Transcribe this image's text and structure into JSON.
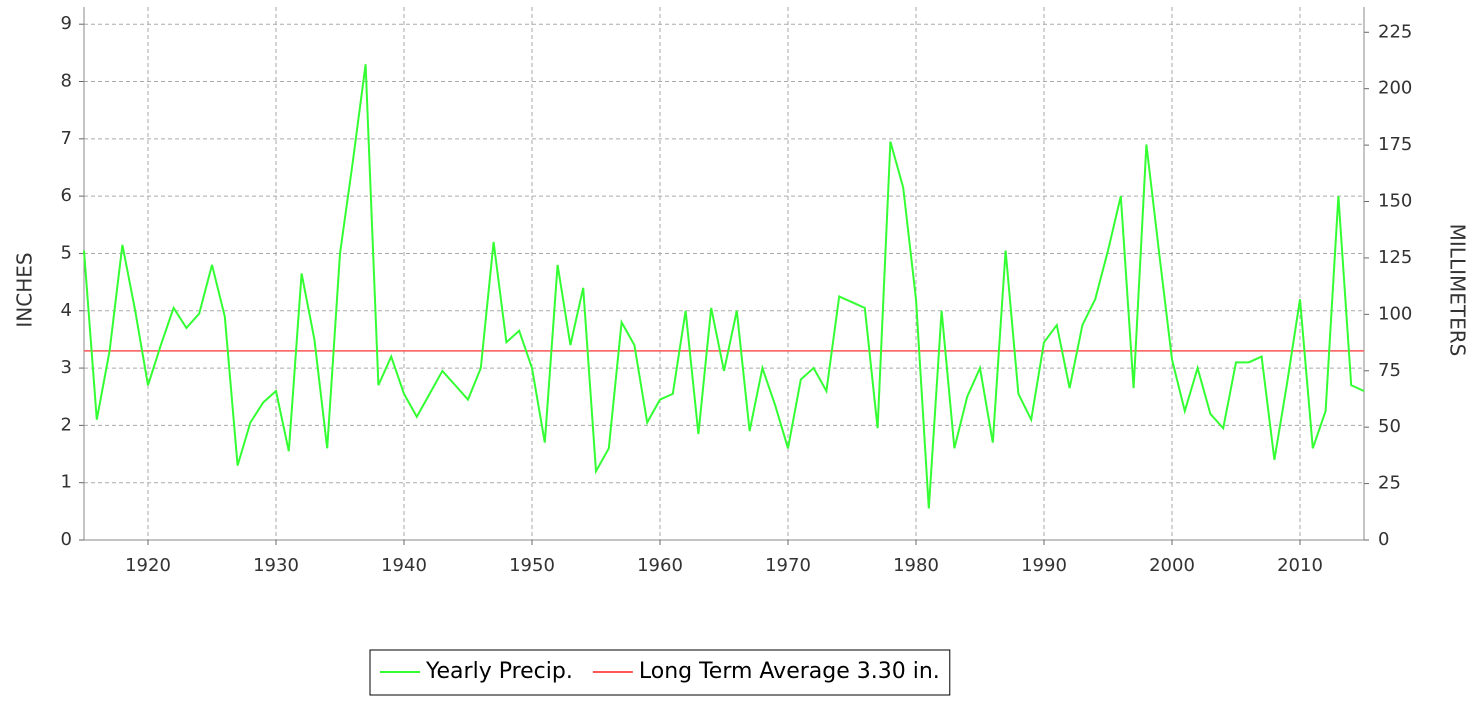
{
  "chart_data": {
    "type": "line",
    "x": [
      1915,
      1916,
      1917,
      1918,
      1919,
      1920,
      1921,
      1922,
      1923,
      1924,
      1925,
      1926,
      1927,
      1928,
      1929,
      1930,
      1931,
      1932,
      1933,
      1934,
      1935,
      1936,
      1937,
      1938,
      1939,
      1940,
      1941,
      1942,
      1943,
      1944,
      1945,
      1946,
      1947,
      1948,
      1949,
      1950,
      1951,
      1952,
      1953,
      1954,
      1955,
      1956,
      1957,
      1958,
      1959,
      1960,
      1961,
      1962,
      1963,
      1964,
      1965,
      1966,
      1967,
      1968,
      1969,
      1970,
      1971,
      1972,
      1973,
      1974,
      1975,
      1976,
      1977,
      1978,
      1979,
      1980,
      1981,
      1982,
      1983,
      1984,
      1985,
      1986,
      1987,
      1988,
      1989,
      1990,
      1991,
      1992,
      1993,
      1994,
      1995,
      1996,
      1997,
      1998,
      1999,
      2000,
      2001,
      2002,
      2003,
      2004,
      2005,
      2006,
      2007,
      2008,
      2009,
      2010,
      2011,
      2012,
      2013,
      2014,
      2015
    ],
    "series": [
      {
        "name": "Yearly Precip.",
        "color": "#33ff33",
        "values": [
          5.05,
          2.1,
          3.3,
          5.15,
          4.0,
          2.7,
          3.4,
          4.05,
          3.7,
          3.95,
          4.8,
          3.9,
          1.3,
          2.05,
          2.4,
          2.6,
          1.55,
          4.65,
          3.5,
          1.6,
          5.0,
          6.6,
          8.3,
          2.7,
          3.2,
          2.55,
          2.15,
          2.55,
          2.95,
          2.7,
          2.45,
          3.0,
          5.2,
          3.45,
          3.65,
          3.0,
          1.7,
          4.8,
          3.4,
          4.4,
          1.2,
          1.6,
          3.8,
          3.4,
          2.05,
          2.45,
          2.55,
          4.0,
          1.85,
          4.05,
          2.95,
          4.0,
          1.9,
          3.0,
          2.35,
          1.6,
          2.8,
          3.0,
          2.6,
          4.25,
          4.15,
          4.05,
          1.95,
          6.95,
          6.15,
          4.2,
          0.55,
          4.0,
          1.6,
          2.5,
          3.0,
          1.7,
          5.05,
          2.55,
          2.1,
          3.45,
          3.75,
          2.65,
          3.75,
          4.2,
          5.05,
          6.0,
          2.65,
          6.9,
          5.0,
          3.15,
          2.25,
          3.0,
          2.2,
          1.95,
          3.1,
          3.1,
          3.2,
          1.4,
          2.75,
          4.2,
          1.6,
          2.25,
          6.0,
          2.7,
          2.6
        ]
      }
    ],
    "reference_line": {
      "name": "Long Term Average 3.30 in.",
      "value": 3.3,
      "color": "#ff5555"
    },
    "xlim": [
      1915,
      2015
    ],
    "xticks": [
      1920,
      1930,
      1940,
      1950,
      1960,
      1970,
      1980,
      1990,
      2000,
      2010
    ],
    "ylim": [
      0,
      9.3
    ],
    "yticks": [
      0,
      1,
      2,
      3,
      4,
      5,
      6,
      7,
      8,
      9
    ],
    "y2lim": [
      0,
      236.2
    ],
    "y2ticks": [
      0,
      25,
      50,
      75,
      100,
      125,
      150,
      175,
      200,
      225
    ],
    "ylabel": "INCHES",
    "y2label": "MILLIMETERS",
    "grid": true
  }
}
